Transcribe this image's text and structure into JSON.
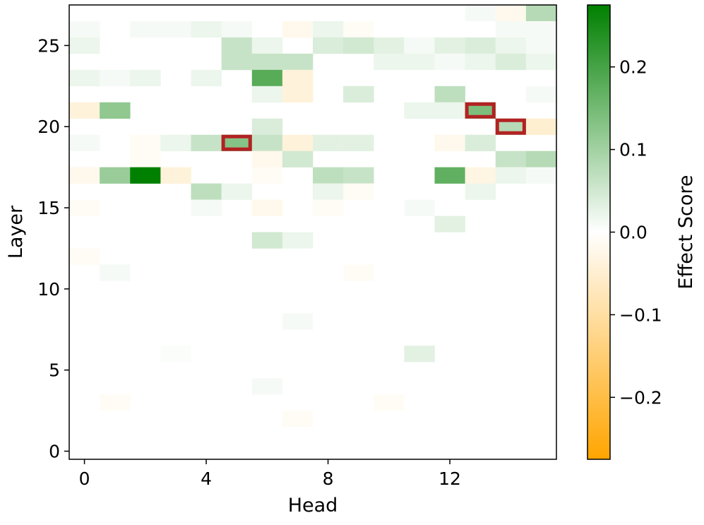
{
  "chart_data": {
    "type": "heatmap",
    "title": "",
    "xlabel": "Head",
    "ylabel": "Layer",
    "x_ticks": [
      0,
      4,
      8,
      12
    ],
    "y_ticks": [
      0,
      5,
      10,
      15,
      20,
      25
    ],
    "xlim": [
      -0.5,
      15.5
    ],
    "ylim": [
      -0.5,
      27.5
    ],
    "n_heads": 16,
    "n_layers": 28,
    "colorbar": {
      "label": "Effect Score",
      "ticks": [
        0.2,
        0.1,
        0.0,
        -0.1,
        -0.2
      ],
      "tick_labels": [
        "0.2",
        "0.1",
        "0.0",
        "−0.1",
        "−0.2"
      ],
      "vmin": -0.275,
      "vmax": 0.275,
      "colors": {
        "low": "#ffa500",
        "mid": "#ffffff",
        "high": "#008000"
      }
    },
    "highlight_color": "#b22222",
    "cells": [
      [
        27,
        13,
        0.01
      ],
      [
        27,
        14,
        -0.02
      ],
      [
        27,
        15,
        0.08
      ],
      [
        26,
        0,
        0.01
      ],
      [
        26,
        2,
        0.01
      ],
      [
        26,
        3,
        0.01
      ],
      [
        26,
        4,
        0.02
      ],
      [
        26,
        5,
        0.01
      ],
      [
        26,
        7,
        -0.02
      ],
      [
        26,
        8,
        0.02
      ],
      [
        26,
        9,
        -0.01
      ],
      [
        26,
        14,
        0.01
      ],
      [
        26,
        15,
        0.01
      ],
      [
        25,
        0,
        0.02
      ],
      [
        25,
        5,
        0.06
      ],
      [
        25,
        6,
        0.02
      ],
      [
        25,
        8,
        0.04
      ],
      [
        25,
        9,
        0.05
      ],
      [
        25,
        10,
        0.03
      ],
      [
        25,
        11,
        0.01
      ],
      [
        25,
        12,
        0.03
      ],
      [
        25,
        13,
        0.04
      ],
      [
        25,
        14,
        0.02
      ],
      [
        25,
        15,
        0.01
      ],
      [
        24,
        5,
        0.06
      ],
      [
        24,
        6,
        0.06
      ],
      [
        24,
        7,
        0.06
      ],
      [
        24,
        10,
        0.02
      ],
      [
        24,
        11,
        0.02
      ],
      [
        24,
        12,
        0.01
      ],
      [
        24,
        13,
        0.02
      ],
      [
        24,
        14,
        0.04
      ],
      [
        24,
        15,
        0.02
      ],
      [
        23,
        0,
        0.02
      ],
      [
        23,
        1,
        0.01
      ],
      [
        23,
        2,
        0.02
      ],
      [
        23,
        4,
        0.02
      ],
      [
        23,
        6,
        0.18
      ],
      [
        23,
        7,
        -0.04
      ],
      [
        22,
        6,
        0.02
      ],
      [
        22,
        7,
        -0.04
      ],
      [
        22,
        9,
        0.04
      ],
      [
        22,
        12,
        0.07
      ],
      [
        22,
        15,
        0.01
      ],
      [
        21,
        0,
        -0.04
      ],
      [
        21,
        1,
        0.12
      ],
      [
        21,
        11,
        0.02
      ],
      [
        21,
        12,
        0.02
      ],
      [
        21,
        13,
        0.14
      ],
      [
        20,
        6,
        0.04
      ],
      [
        20,
        14,
        0.08
      ],
      [
        20,
        15,
        -0.05
      ],
      [
        19,
        0,
        0.01
      ],
      [
        19,
        2,
        -0.01
      ],
      [
        19,
        3,
        0.02
      ],
      [
        19,
        4,
        0.06
      ],
      [
        19,
        5,
        0.13
      ],
      [
        19,
        6,
        0.06
      ],
      [
        19,
        7,
        -0.04
      ],
      [
        19,
        8,
        0.03
      ],
      [
        19,
        9,
        0.03
      ],
      [
        19,
        12,
        -0.02
      ],
      [
        19,
        13,
        0.04
      ],
      [
        18,
        2,
        -0.01
      ],
      [
        18,
        6,
        -0.02
      ],
      [
        18,
        7,
        0.05
      ],
      [
        18,
        14,
        0.06
      ],
      [
        18,
        15,
        0.08
      ],
      [
        17,
        0,
        -0.02
      ],
      [
        17,
        1,
        0.11
      ],
      [
        17,
        2,
        0.275
      ],
      [
        17,
        3,
        -0.04
      ],
      [
        17,
        6,
        -0.01
      ],
      [
        17,
        8,
        0.07
      ],
      [
        17,
        9,
        0.06
      ],
      [
        17,
        12,
        0.17
      ],
      [
        17,
        13,
        -0.03
      ],
      [
        17,
        14,
        0.02
      ],
      [
        17,
        15,
        0.01
      ],
      [
        16,
        4,
        0.07
      ],
      [
        16,
        5,
        0.02
      ],
      [
        16,
        8,
        0.02
      ],
      [
        16,
        9,
        -0.01
      ],
      [
        16,
        13,
        0.02
      ],
      [
        15,
        0,
        -0.01
      ],
      [
        15,
        4,
        0.01
      ],
      [
        15,
        6,
        -0.02
      ],
      [
        15,
        8,
        -0.01
      ],
      [
        15,
        11,
        0.01
      ],
      [
        14,
        12,
        0.03
      ],
      [
        13,
        6,
        0.05
      ],
      [
        13,
        7,
        0.02
      ],
      [
        12,
        0,
        -0.01
      ],
      [
        11,
        1,
        0.01
      ],
      [
        11,
        9,
        -0.01
      ],
      [
        8,
        7,
        0.01
      ],
      [
        6,
        11,
        0.03
      ],
      [
        6,
        3,
        0.005
      ],
      [
        4,
        6,
        0.01
      ],
      [
        3,
        1,
        -0.01
      ],
      [
        3,
        10,
        -0.01
      ],
      [
        2,
        7,
        -0.01
      ]
    ],
    "highlighted_cells": [
      [
        19,
        5
      ],
      [
        21,
        13
      ],
      [
        20,
        14
      ]
    ]
  }
}
